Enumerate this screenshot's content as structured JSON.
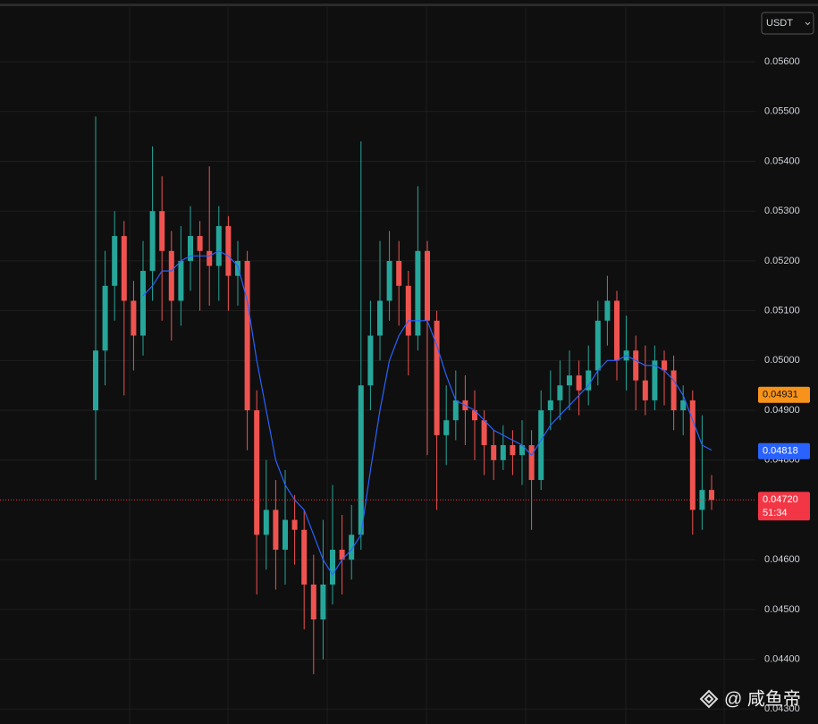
{
  "chart_data": {
    "type": "candlestick",
    "currency": "USDT",
    "watermark": "@ 咸鱼帝",
    "up_color": "#26a69a",
    "down_color": "#ef5350",
    "ylim": [
      0.0427,
      0.05724
    ],
    "yticks": [
      {
        "value": 0.043,
        "label": "0.04300"
      },
      {
        "value": 0.044,
        "label": "0.04400"
      },
      {
        "value": 0.045,
        "label": "0.04500"
      },
      {
        "value": 0.046,
        "label": "0.04600"
      },
      {
        "value": 0.048,
        "label": "0.04800"
      },
      {
        "value": 0.049,
        "label": "0.04900"
      },
      {
        "value": 0.05,
        "label": "0.05000"
      },
      {
        "value": 0.051,
        "label": "0.05100"
      },
      {
        "value": 0.052,
        "label": "0.05200"
      },
      {
        "value": 0.053,
        "label": "0.05300"
      },
      {
        "value": 0.054,
        "label": "0.05400"
      },
      {
        "value": 0.055,
        "label": "0.05500"
      },
      {
        "value": 0.056,
        "label": "0.05600"
      }
    ],
    "grid": true,
    "series": [
      {
        "open": [
          0.049,
          0.0502,
          0.0515,
          0.0525,
          0.0512,
          0.0505,
          0.0518,
          0.053,
          0.0522,
          0.0512,
          0.052,
          0.0525,
          0.0522,
          0.0519,
          0.0527,
          0.0517,
          0.052,
          0.049,
          0.0465,
          0.047,
          0.0462,
          0.0468,
          0.0466,
          0.0455,
          0.0448,
          0.0455,
          0.0462,
          0.046,
          0.0465,
          0.0495,
          0.0505,
          0.0512,
          0.052,
          0.0515,
          0.0505,
          0.0522,
          0.0508,
          0.0485,
          0.0488,
          0.0492,
          0.049,
          0.0488,
          0.0483,
          0.048,
          0.0483,
          0.0481,
          0.0483,
          0.0476,
          0.049,
          0.0492,
          0.0495,
          0.0497,
          0.0494,
          0.0498,
          0.0508,
          0.0512,
          0.05,
          0.0502,
          0.0496,
          0.0492,
          0.05,
          0.0498,
          0.049,
          0.0492,
          0.047,
          0.0474
        ],
        "high": [
          0.0549,
          0.0522,
          0.053,
          0.0528,
          0.0516,
          0.0524,
          0.0543,
          0.0537,
          0.0526,
          0.0527,
          0.0531,
          0.0528,
          0.0539,
          0.0531,
          0.0529,
          0.0524,
          0.0522,
          0.0494,
          0.048,
          0.0476,
          0.0478,
          0.0473,
          0.047,
          0.0461,
          0.0468,
          0.0475,
          0.0469,
          0.0471,
          0.0544,
          0.0512,
          0.0524,
          0.0526,
          0.0524,
          0.0518,
          0.0535,
          0.0524,
          0.051,
          0.0495,
          0.0498,
          0.0497,
          0.0494,
          0.049,
          0.0486,
          0.0487,
          0.0486,
          0.0488,
          0.0486,
          0.0494,
          0.0498,
          0.05,
          0.0502,
          0.05,
          0.0503,
          0.0512,
          0.0517,
          0.0514,
          0.0509,
          0.0505,
          0.0503,
          0.0503,
          0.0502,
          0.0501,
          0.0495,
          0.0494,
          0.0489,
          0.0477
        ],
        "low": [
          0.0476,
          0.0495,
          0.0508,
          0.0493,
          0.0498,
          0.0501,
          0.0512,
          0.0508,
          0.0504,
          0.0507,
          0.0514,
          0.051,
          0.0511,
          0.0512,
          0.051,
          0.0511,
          0.0482,
          0.0453,
          0.0458,
          0.0454,
          0.0455,
          0.0459,
          0.0446,
          0.0437,
          0.044,
          0.0451,
          0.0453,
          0.0456,
          0.0462,
          0.049,
          0.05,
          0.0508,
          0.0507,
          0.0497,
          0.0502,
          0.0481,
          0.047,
          0.0479,
          0.0484,
          0.0483,
          0.048,
          0.0477,
          0.0476,
          0.0478,
          0.0477,
          0.0475,
          0.0466,
          0.0474,
          0.0486,
          0.0488,
          0.049,
          0.0489,
          0.0491,
          0.0495,
          0.0503,
          0.0496,
          0.0494,
          0.049,
          0.0489,
          0.049,
          0.0491,
          0.0486,
          0.0485,
          0.0465,
          0.0466,
          0.047
        ],
        "close": [
          0.0502,
          0.0515,
          0.0525,
          0.0512,
          0.0505,
          0.0518,
          0.053,
          0.0522,
          0.0512,
          0.052,
          0.0525,
          0.0522,
          0.0519,
          0.0527,
          0.0517,
          0.052,
          0.049,
          0.0465,
          0.047,
          0.0462,
          0.0468,
          0.0466,
          0.0455,
          0.0448,
          0.0455,
          0.0462,
          0.046,
          0.0465,
          0.0495,
          0.0505,
          0.0512,
          0.052,
          0.0515,
          0.0505,
          0.0522,
          0.0508,
          0.0485,
          0.0488,
          0.0492,
          0.049,
          0.0488,
          0.0483,
          0.048,
          0.0483,
          0.0481,
          0.0483,
          0.0476,
          0.049,
          0.0492,
          0.0495,
          0.0497,
          0.0494,
          0.0498,
          0.0508,
          0.0512,
          0.05,
          0.0502,
          0.0496,
          0.0492,
          0.05,
          0.0498,
          0.049,
          0.0492,
          0.047,
          0.0474,
          0.0472
        ]
      }
    ],
    "ma": {
      "color": "#2962ff",
      "values": [
        null,
        null,
        null,
        null,
        null,
        0.0513,
        0.0515,
        0.0518,
        0.0518,
        0.052,
        0.0521,
        0.0521,
        0.0521,
        0.0522,
        0.0521,
        0.0519,
        0.0512,
        0.05,
        0.049,
        0.048,
        0.0475,
        0.0472,
        0.047,
        0.0465,
        0.046,
        0.0457,
        0.046,
        0.0462,
        0.0465,
        0.0478,
        0.049,
        0.05,
        0.0505,
        0.0508,
        0.0508,
        0.0508,
        0.0503,
        0.0497,
        0.0492,
        0.0491,
        0.049,
        0.0488,
        0.0486,
        0.0485,
        0.0484,
        0.0483,
        0.0481,
        0.0484,
        0.0487,
        0.0489,
        0.0491,
        0.0493,
        0.0495,
        0.0498,
        0.05,
        0.05,
        0.0501,
        0.05,
        0.0499,
        0.0499,
        0.0498,
        0.0496,
        0.0493,
        0.0488,
        0.0483,
        0.0482
      ]
    },
    "price_tags": [
      {
        "value": 0.04931,
        "label": "0.04931",
        "color": "#f7931a"
      },
      {
        "value": 0.04818,
        "label": "0.04818",
        "color": "#2962ff"
      },
      {
        "value": 0.0472,
        "label": "0.04720",
        "color": "#f23645",
        "countdown": "51:34"
      }
    ]
  }
}
